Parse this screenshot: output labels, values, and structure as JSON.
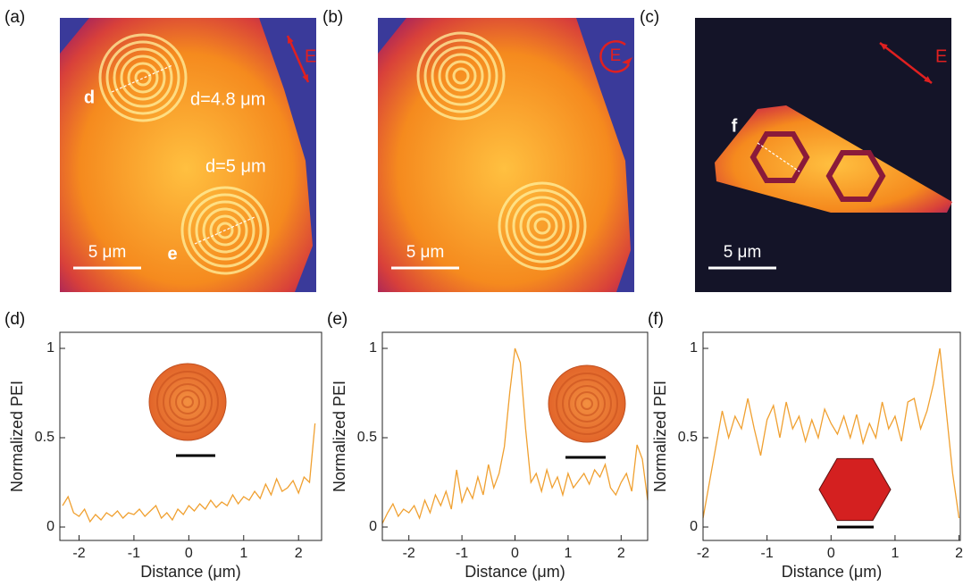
{
  "images": [
    {
      "panel": "(a)",
      "field": "E",
      "labels": [
        "d",
        "d=4.8 μm",
        "d=5 μm",
        "e"
      ],
      "scale_bar": "5 μm"
    },
    {
      "panel": "(b)",
      "field": "E",
      "labels": [],
      "scale_bar": "5 μm"
    },
    {
      "panel": "(c)",
      "field": "E",
      "labels": [
        "f"
      ],
      "scale_bar": "5 μm"
    }
  ],
  "chart_data": [
    {
      "type": "line",
      "panel": "(d)",
      "x_label": "Distance (μm)",
      "y_label": "Normalized PEI",
      "color": "#f0a030",
      "xlim": [
        -2.35,
        2.42
      ],
      "ylim": [
        -0.075,
        1.09
      ],
      "xticks": [
        -2,
        -1,
        0,
        1,
        2
      ],
      "yticks": [
        0,
        0.5,
        1
      ],
      "x": [
        -2.3,
        -2.2,
        -2.1,
        -2.0,
        -1.9,
        -1.8,
        -1.7,
        -1.6,
        -1.5,
        -1.4,
        -1.3,
        -1.2,
        -1.1,
        -1.0,
        -0.9,
        -0.8,
        -0.7,
        -0.6,
        -0.5,
        -0.4,
        -0.3,
        -0.2,
        -0.1,
        0.0,
        0.1,
        0.2,
        0.3,
        0.4,
        0.5,
        0.6,
        0.7,
        0.8,
        0.9,
        1.0,
        1.1,
        1.2,
        1.3,
        1.4,
        1.5,
        1.6,
        1.7,
        1.8,
        1.9,
        2.0,
        2.1,
        2.2,
        2.3
      ],
      "values": [
        0.12,
        0.17,
        0.08,
        0.06,
        0.1,
        0.03,
        0.07,
        0.04,
        0.08,
        0.06,
        0.09,
        0.05,
        0.08,
        0.07,
        0.1,
        0.06,
        0.09,
        0.12,
        0.05,
        0.08,
        0.04,
        0.1,
        0.07,
        0.12,
        0.09,
        0.13,
        0.1,
        0.15,
        0.11,
        0.14,
        0.12,
        0.18,
        0.13,
        0.17,
        0.15,
        0.2,
        0.16,
        0.24,
        0.18,
        0.27,
        0.2,
        0.22,
        0.26,
        0.19,
        0.28,
        0.25,
        0.58
      ]
    },
    {
      "type": "line",
      "panel": "(e)",
      "x_label": "Distance (μm)",
      "y_label": "Normalized PEI",
      "color": "#f0a030",
      "xlim": [
        -2.5,
        2.5
      ],
      "ylim": [
        -0.075,
        1.09
      ],
      "xticks": [
        -2,
        -1,
        0,
        1,
        2
      ],
      "yticks": [
        0,
        0.5,
        1
      ],
      "x": [
        -2.5,
        -2.4,
        -2.3,
        -2.2,
        -2.1,
        -2.0,
        -1.9,
        -1.8,
        -1.7,
        -1.6,
        -1.5,
        -1.4,
        -1.3,
        -1.2,
        -1.1,
        -1.0,
        -0.9,
        -0.8,
        -0.7,
        -0.6,
        -0.5,
        -0.4,
        -0.3,
        -0.2,
        -0.1,
        0.0,
        0.1,
        0.2,
        0.3,
        0.4,
        0.5,
        0.6,
        0.7,
        0.8,
        0.9,
        1.0,
        1.1,
        1.2,
        1.3,
        1.4,
        1.5,
        1.6,
        1.7,
        1.8,
        1.9,
        2.0,
        2.1,
        2.2,
        2.3,
        2.4,
        2.5
      ],
      "values": [
        0.02,
        0.08,
        0.13,
        0.06,
        0.1,
        0.08,
        0.12,
        0.05,
        0.15,
        0.08,
        0.18,
        0.12,
        0.2,
        0.1,
        0.32,
        0.14,
        0.22,
        0.16,
        0.28,
        0.18,
        0.35,
        0.22,
        0.3,
        0.45,
        0.75,
        1.0,
        0.92,
        0.55,
        0.25,
        0.3,
        0.2,
        0.32,
        0.22,
        0.28,
        0.18,
        0.3,
        0.22,
        0.26,
        0.3,
        0.24,
        0.32,
        0.28,
        0.35,
        0.22,
        0.18,
        0.25,
        0.3,
        0.2,
        0.46,
        0.38,
        0.15
      ]
    },
    {
      "type": "line",
      "panel": "(f)",
      "x_label": "Distance (μm)",
      "y_label": "Normalized PEI",
      "color": "#f0a030",
      "xlim": [
        -2,
        2.02
      ],
      "ylim": [
        -0.075,
        1.09
      ],
      "xticks": [
        -2,
        -1,
        0,
        1,
        2
      ],
      "yticks": [
        0,
        0.5,
        1
      ],
      "x": [
        -2.0,
        -1.9,
        -1.8,
        -1.7,
        -1.6,
        -1.5,
        -1.4,
        -1.3,
        -1.2,
        -1.1,
        -1.0,
        -0.9,
        -0.8,
        -0.7,
        -0.6,
        -0.5,
        -0.4,
        -0.3,
        -0.2,
        -0.1,
        0.0,
        0.1,
        0.2,
        0.3,
        0.4,
        0.5,
        0.6,
        0.7,
        0.8,
        0.9,
        1.0,
        1.1,
        1.2,
        1.3,
        1.4,
        1.5,
        1.6,
        1.7,
        1.8,
        1.9,
        2.0
      ],
      "values": [
        0.05,
        0.25,
        0.45,
        0.65,
        0.5,
        0.62,
        0.55,
        0.72,
        0.55,
        0.4,
        0.6,
        0.68,
        0.5,
        0.7,
        0.55,
        0.62,
        0.48,
        0.6,
        0.5,
        0.66,
        0.58,
        0.52,
        0.62,
        0.5,
        0.63,
        0.47,
        0.58,
        0.5,
        0.7,
        0.55,
        0.62,
        0.48,
        0.7,
        0.72,
        0.55,
        0.65,
        0.8,
        1.0,
        0.65,
        0.3,
        0.05
      ]
    }
  ]
}
